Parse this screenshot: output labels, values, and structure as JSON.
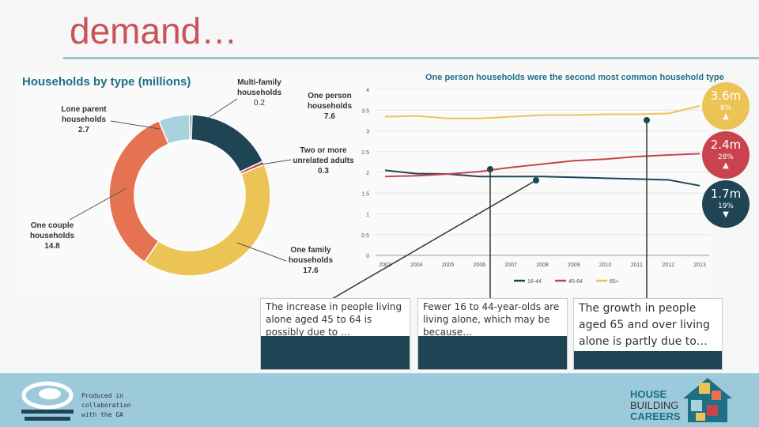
{
  "slide": {
    "title": "demand…"
  },
  "pie_chart": {
    "title": "Households by type (millions)",
    "labels": [
      {
        "name": "Multi-family households",
        "value": "0.2"
      },
      {
        "name": "One person households",
        "value": "7.6"
      },
      {
        "name": "Lone parent households",
        "value": "2.7"
      },
      {
        "name": "Two or more unrelated adults",
        "value": "0.3"
      },
      {
        "name": "One couple households",
        "value": "14.8"
      },
      {
        "name": "One family households",
        "value": "17.6"
      }
    ]
  },
  "line_chart": {
    "title": "One person households were the second most common household type"
  },
  "chart_data": [
    {
      "type": "pie",
      "title": "Households by type (millions)",
      "slices": [
        {
          "label": "Multi-family households",
          "value": 0.2,
          "color": "#5b6770"
        },
        {
          "label": "One person households",
          "value": 7.6,
          "color": "#1f4453"
        },
        {
          "label": "Two or more unrelated adults",
          "value": 0.3,
          "color": "#c9434e"
        },
        {
          "label": "One family households",
          "value": 17.6,
          "color": "#ecc456"
        },
        {
          "label": "One couple households",
          "value": 14.8,
          "color": "#e57352"
        },
        {
          "label": "Lone parent households",
          "value": 2.7,
          "color": "#a9d2df"
        }
      ]
    },
    {
      "type": "line",
      "title": "One person households were the second most common household type",
      "x": [
        "2003",
        "2004",
        "2005",
        "2006",
        "2007",
        "2008",
        "2009",
        "2010",
        "2011",
        "2012",
        "2013"
      ],
      "yticks": [
        "0",
        "0.5",
        "1",
        "1.5",
        "2",
        "2.5",
        "3",
        "3.5",
        "4"
      ],
      "ylim": [
        0,
        4
      ],
      "legend_position": "bottom",
      "series": [
        {
          "name": "16-44",
          "color": "#1f4453",
          "values": [
            2.05,
            1.97,
            1.96,
            1.9,
            1.9,
            1.9,
            1.88,
            1.86,
            1.84,
            1.82,
            1.68
          ]
        },
        {
          "name": "45-64",
          "color": "#c9434e",
          "values": [
            1.9,
            1.92,
            1.96,
            2.02,
            2.12,
            2.2,
            2.28,
            2.32,
            2.38,
            2.42,
            2.45
          ]
        },
        {
          "name": "65+",
          "color": "#ecc456",
          "values": [
            3.34,
            3.36,
            3.3,
            3.3,
            3.34,
            3.38,
            3.38,
            3.4,
            3.4,
            3.42,
            3.6
          ]
        }
      ]
    }
  ],
  "badges": [
    {
      "value": "3.6m",
      "pct": "8%",
      "arrow": "▲",
      "color": "#ecc456"
    },
    {
      "value": "2.4m",
      "pct": "28%",
      "arrow": "▲",
      "color": "#c9434e"
    },
    {
      "value": "1.7m",
      "pct": "19%",
      "arrow": "▼",
      "color": "#1f4453"
    }
  ],
  "questions": [
    {
      "text": "The increase in people living alone aged 45 to 64 is possibly due to …"
    },
    {
      "text": "Fewer 16 to 44-year-olds are living alone, which may be because…"
    },
    {
      "text": "The growth in people aged 65 and over living alone is partly due to…"
    }
  ],
  "footer": {
    "produced_by": "Produced in collaboration with the GA",
    "brand_line1": "HOUSE",
    "brand_line2": "BUILDING",
    "brand_line3": "CAREERS",
    "footer_color": "#9ccadb"
  }
}
